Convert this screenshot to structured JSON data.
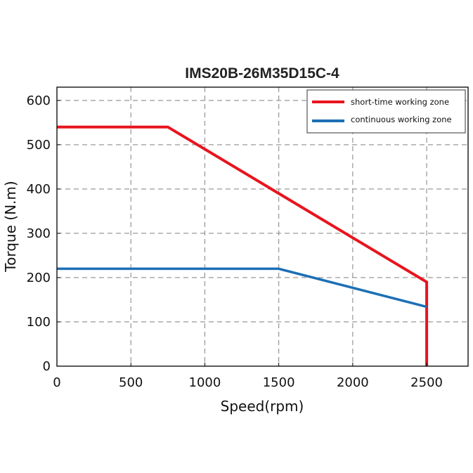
{
  "chart_data": {
    "type": "line",
    "title": "IMS20B-26M35D15C-4",
    "xlabel": "Speed(rpm)",
    "ylabel": "Torque (N.m)",
    "xlim": [
      0,
      2780
    ],
    "ylim": [
      0,
      630
    ],
    "xticks": [
      0,
      500,
      1000,
      1500,
      2000,
      2500
    ],
    "yticks": [
      0,
      100,
      200,
      300,
      400,
      500,
      600
    ],
    "grid": true,
    "legend_position": "top-right",
    "series": [
      {
        "name": "short-time working zone",
        "color": "#e8141e",
        "x": [
          0,
          750,
          2500,
          2500
        ],
        "y": [
          540,
          540,
          190,
          0
        ]
      },
      {
        "name": "continuous working zone",
        "color": "#1c6fb5",
        "x": [
          0,
          1500,
          2500
        ],
        "y": [
          220,
          220,
          134
        ]
      }
    ]
  }
}
